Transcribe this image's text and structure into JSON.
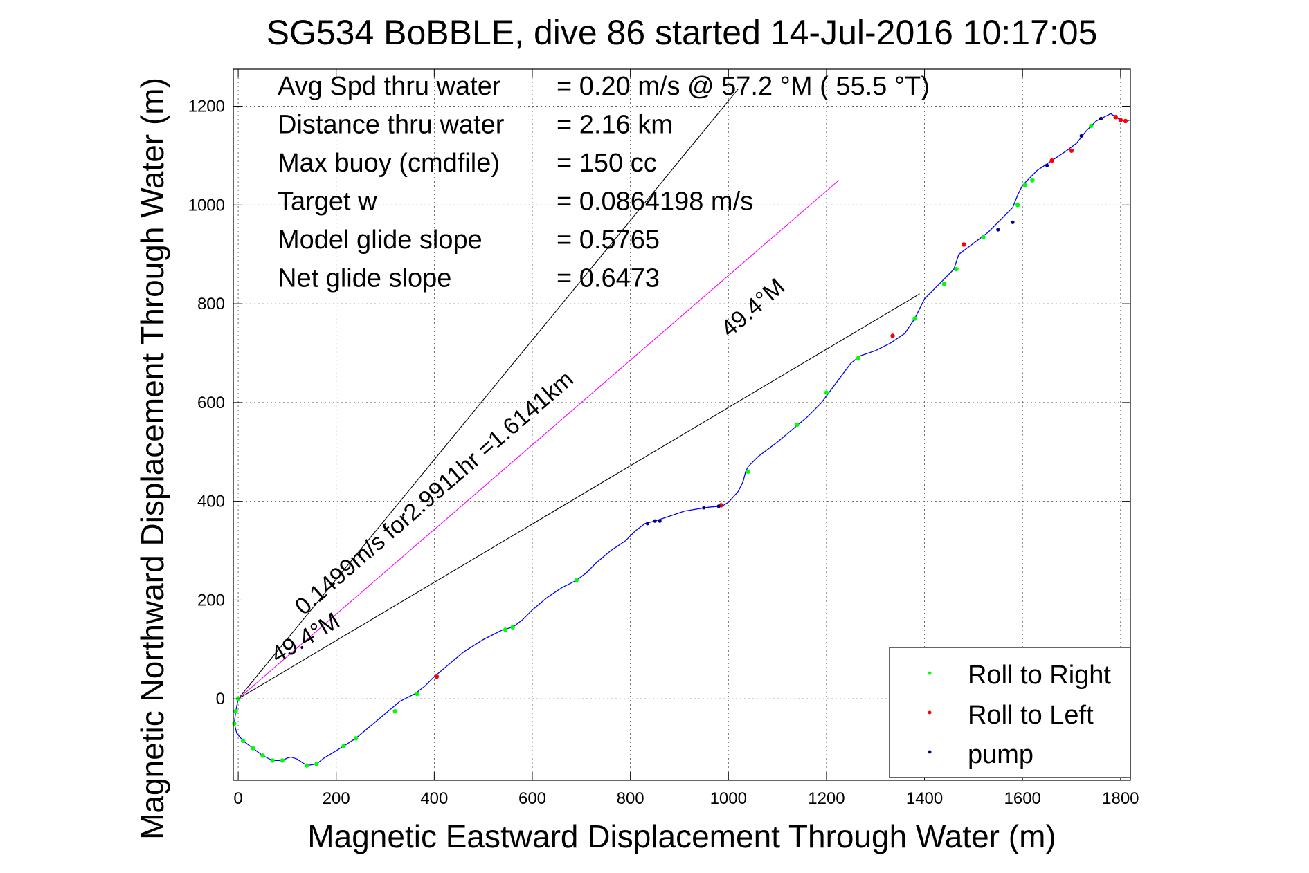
{
  "chart_data": {
    "type": "line",
    "title": "SG534 BoBBLE, dive 86 started 14-Jul-2016 10:17:05",
    "xlabel": "Magnetic Eastward Displacement Through Water (m)",
    "ylabel": "Magnetic Northward Displacement Through Water (m)",
    "xlim": [
      -10,
      1820
    ],
    "ylim": [
      -165,
      1275
    ],
    "xticks": [
      0,
      200,
      400,
      600,
      800,
      1000,
      1200,
      1400,
      1600,
      1800
    ],
    "yticks": [
      0,
      200,
      400,
      600,
      800,
      1000,
      1200
    ],
    "grid": true,
    "stats": [
      {
        "label": "Avg Spd thru water",
        "value": "=  0.20 m/s @  57.2 °M ( 55.5 °T)"
      },
      {
        "label": "Distance thru water",
        "value": "=  2.16 km"
      },
      {
        "label": "Max buoy (cmdfile)",
        "value": "= 150 cc"
      },
      {
        "label": "Target w",
        "value": "= 0.0864198 m/s"
      },
      {
        "label": "Model glide slope",
        "value": "= 0.5765"
      },
      {
        "label": "Net glide slope",
        "value": "= 0.6473"
      }
    ],
    "annotations": {
      "speed_label": "0.1499m/s for2.9911hr =1.6141km",
      "heading_label_1": "49.4°M",
      "heading_label_2": "49.4°M"
    },
    "reference_lines": [
      {
        "x": [
          0,
          1020
        ],
        "y": [
          0,
          1235
        ],
        "color": "#000000"
      },
      {
        "x": [
          0,
          1225
        ],
        "y": [
          0,
          1050
        ],
        "color": "#ff00ff"
      },
      {
        "x": [
          0,
          1390
        ],
        "y": [
          0,
          820
        ],
        "color": "#000000"
      }
    ],
    "track": {
      "color": "#0000ff",
      "x": [
        0,
        -5,
        -8,
        -3,
        10,
        30,
        50,
        70,
        90,
        100,
        108,
        120,
        140,
        160,
        175,
        195,
        215,
        240,
        270,
        300,
        330,
        360,
        380,
        400,
        430,
        460,
        500,
        540,
        560,
        580,
        600,
        630,
        660,
        690,
        710,
        730,
        760,
        790,
        810,
        830,
        850,
        880,
        910,
        940,
        960,
        980,
        990,
        1000,
        1020,
        1030,
        1035,
        1040,
        1060,
        1080,
        1100,
        1130,
        1160,
        1190,
        1220,
        1250,
        1270,
        1300,
        1330,
        1360,
        1380,
        1390,
        1395,
        1400,
        1420,
        1440,
        1460,
        1470,
        1490,
        1510,
        1530,
        1560,
        1580,
        1590,
        1600,
        1610,
        1630,
        1660,
        1690,
        1710,
        1730,
        1750,
        1770,
        1780,
        1790,
        1800,
        1810,
        1820
      ],
      "y": [
        0,
        -25,
        -50,
        -70,
        -85,
        -100,
        -115,
        -125,
        -125,
        -120,
        -118,
        -122,
        -135,
        -132,
        -120,
        -108,
        -96,
        -80,
        -55,
        -30,
        -5,
        10,
        25,
        45,
        70,
        95,
        120,
        140,
        145,
        160,
        180,
        205,
        225,
        240,
        255,
        275,
        300,
        320,
        340,
        355,
        360,
        370,
        380,
        385,
        388,
        390,
        392,
        398,
        420,
        440,
        460,
        470,
        490,
        505,
        520,
        545,
        570,
        600,
        640,
        680,
        695,
        705,
        720,
        740,
        770,
        790,
        800,
        810,
        830,
        850,
        870,
        900,
        915,
        930,
        945,
        975,
        995,
        1020,
        1040,
        1050,
        1070,
        1090,
        1110,
        1125,
        1150,
        1170,
        1180,
        1185,
        1178,
        1172,
        1170,
        1172
      ]
    },
    "legend": {
      "position": "bottom-right",
      "entries": [
        {
          "label": "Roll to Right",
          "color": "#00ff00"
        },
        {
          "label": "Roll to Left",
          "color": "#ff0000"
        },
        {
          "label": "pump",
          "color": "#00008b"
        }
      ]
    },
    "markers": {
      "roll_right": {
        "color": "#00ff00",
        "x": [
          0,
          -5,
          -8,
          10,
          30,
          50,
          70,
          90,
          140,
          160,
          215,
          240,
          320,
          365,
          545,
          560,
          690,
          1040,
          1140,
          1200,
          1265,
          1380,
          1440,
          1465,
          1520,
          1590,
          1605,
          1620,
          1740
        ],
        "y": [
          0,
          -25,
          -50,
          -85,
          -100,
          -115,
          -125,
          -125,
          -135,
          -132,
          -96,
          -80,
          -25,
          10,
          140,
          145,
          240,
          460,
          555,
          620,
          690,
          770,
          840,
          870,
          935,
          1000,
          1040,
          1050,
          1160
        ]
      },
      "roll_left": {
        "color": "#ff0000",
        "x": [
          405,
          985,
          1335,
          1480,
          1660,
          1700,
          1790,
          1800,
          1810
        ],
        "y": [
          45,
          392,
          735,
          920,
          1090,
          1110,
          1178,
          1172,
          1170
        ]
      },
      "pump": {
        "color": "#00008b",
        "x": [
          835,
          850,
          860,
          950,
          980,
          1550,
          1580,
          1650,
          1720,
          1760
        ],
        "y": [
          355,
          360,
          360,
          387,
          390,
          950,
          965,
          1080,
          1140,
          1175
        ]
      }
    }
  }
}
